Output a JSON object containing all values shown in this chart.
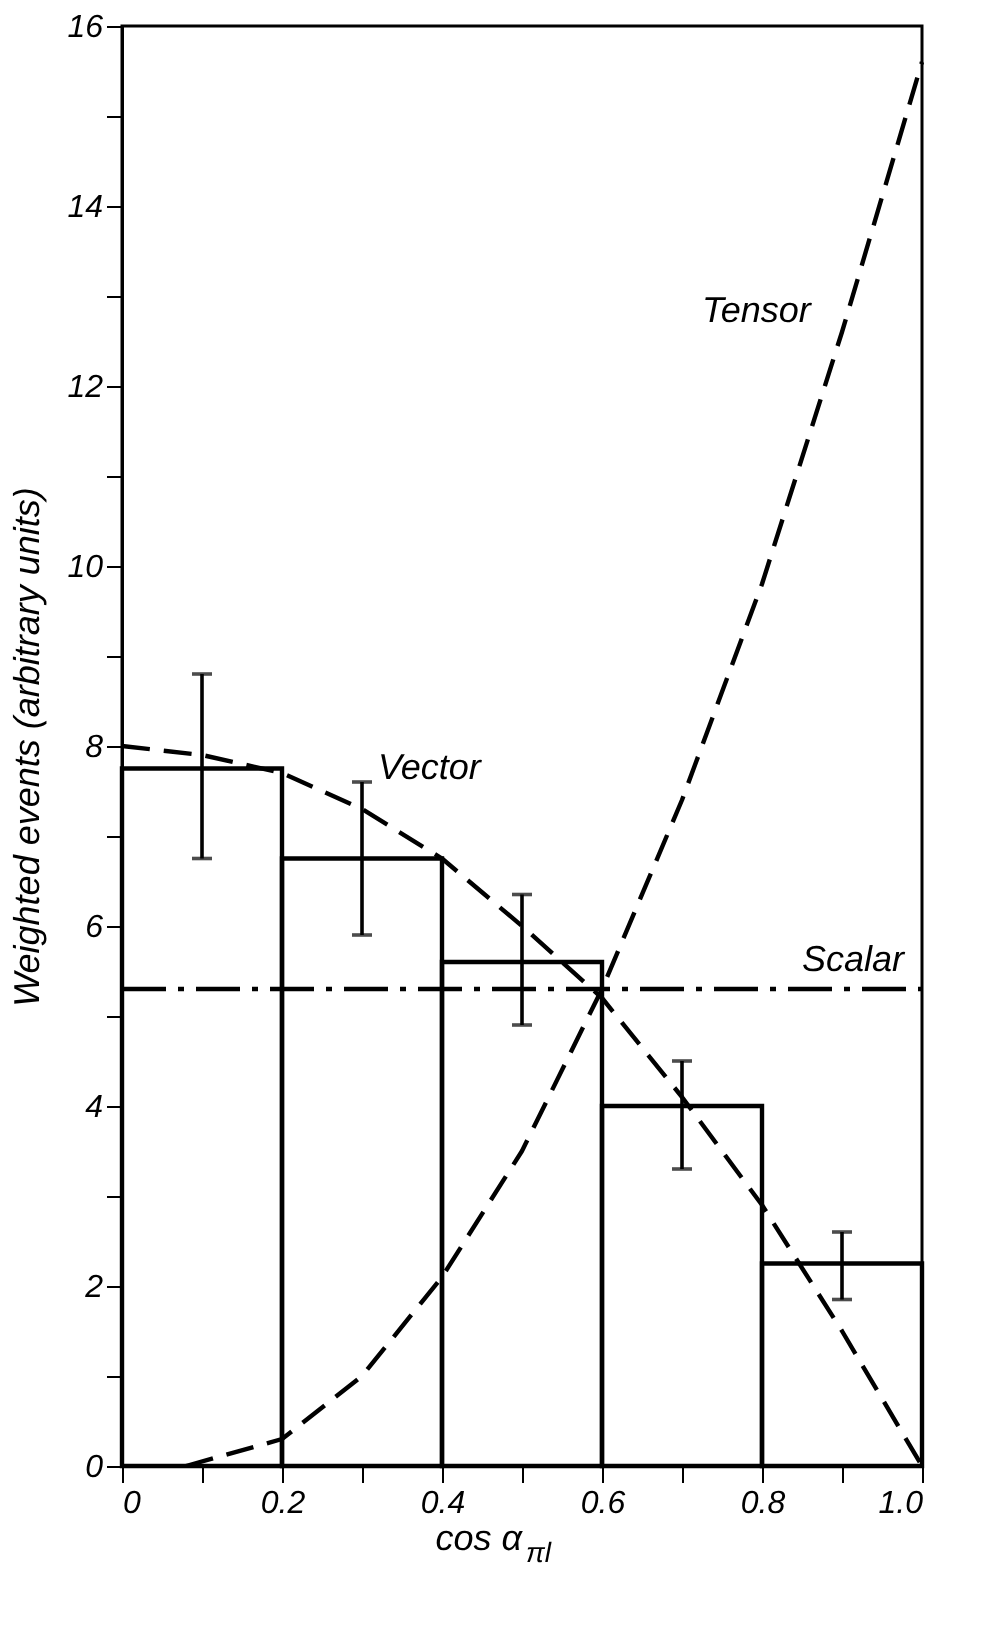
{
  "chart_data": {
    "type": "histogram",
    "xlabel": "cos α$_{πl}$",
    "ylabel": "Weighted events (arbitrary units)",
    "xlim": [
      0,
      1
    ],
    "ylim": [
      0,
      16
    ],
    "xticks": [
      0,
      {
        "value": 0.1,
        "label": null
      },
      0.2,
      {
        "value": 0.3,
        "label": null
      },
      0.4,
      {
        "value": 0.5,
        "label": null
      },
      0.6,
      {
        "value": 0.7,
        "label": null
      },
      0.8,
      {
        "value": 0.9,
        "label": null
      },
      {
        "value": 1,
        "label": "1.0"
      }
    ],
    "yticks": [
      0,
      {
        "value": 1,
        "label": null
      },
      2,
      {
        "value": 3,
        "label": null
      },
      4,
      {
        "value": 5,
        "label": null
      },
      6,
      {
        "value": 7,
        "label": null
      },
      8,
      {
        "value": 9,
        "label": null
      },
      10,
      {
        "value": 11,
        "label": null
      },
      12,
      {
        "value": 13,
        "label": null
      },
      14,
      {
        "value": 15,
        "label": null
      },
      16
    ],
    "grid": false,
    "legend": false,
    "series": [
      {
        "color": "#000000",
        "bins": [
          0,
          0.2,
          0.4,
          0.6,
          0.8,
          1.0
        ],
        "values": [
          7.75,
          6.75,
          5.6,
          4.0,
          2.25
        ],
        "errors": [
          [
            6.75,
            8.8
          ],
          [
            5.9,
            7.6
          ],
          [
            4.9,
            6.35
          ],
          [
            3.3,
            4.5
          ],
          [
            1.85,
            2.6
          ]
        ]
      },
      {
        "name": "Vector",
        "type": "line",
        "line_style": "dashed",
        "color": "#000000",
        "x": [
          0,
          0.1,
          0.2,
          0.3,
          0.4,
          0.5,
          0.6,
          0.7,
          0.8,
          0.9,
          1.0
        ],
        "values": [
          8.0,
          7.9,
          7.7,
          7.3,
          6.75,
          6.0,
          5.2,
          4.1,
          2.9,
          1.5,
          0
        ]
      },
      {
        "name": "Scalar",
        "type": "line",
        "line_style": "dashdot",
        "color": "#000000",
        "x": [
          0,
          1.0
        ],
        "values": [
          5.3,
          5.3
        ]
      },
      {
        "name": "Tensor",
        "type": "line",
        "line_style": "dashed",
        "color": "#000000",
        "x": [
          0.08,
          0.2,
          0.3,
          0.4,
          0.5,
          0.6,
          0.7,
          0.8,
          0.9,
          1.0
        ],
        "values": [
          0,
          0.3,
          1.0,
          2.1,
          3.5,
          5.3,
          7.4,
          9.8,
          12.6,
          15.6
        ]
      }
    ]
  }
}
